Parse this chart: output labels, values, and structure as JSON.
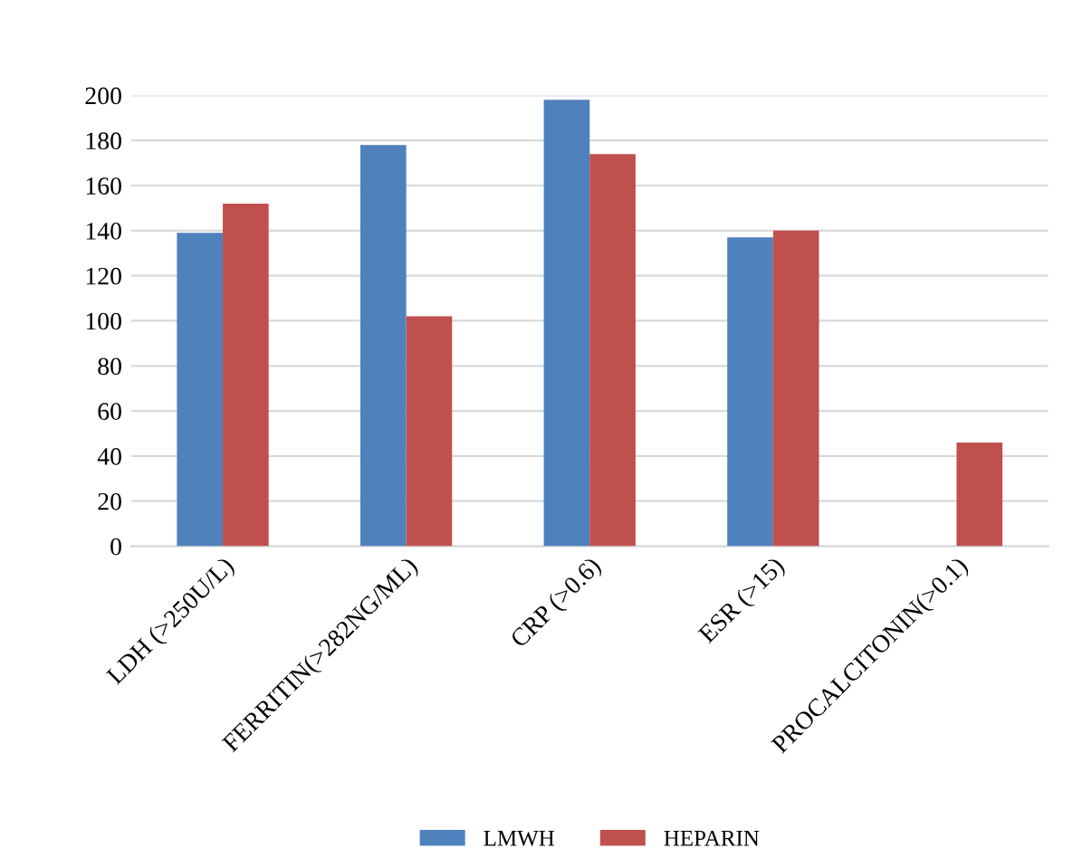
{
  "chart_data": {
    "type": "bar",
    "categories": [
      "LDH (>250U/L)",
      "FERRITIN(>282NG/ML)",
      "CRP (>0.6)",
      "ESR (>15)",
      "PROCALCITONIN(>0.1)"
    ],
    "series": [
      {
        "name": "LMWH",
        "color": "#4f81bd",
        "values": [
          139,
          178,
          198,
          137,
          null
        ]
      },
      {
        "name": "HEPARIN",
        "color": "#c0504d",
        "values": [
          152,
          102,
          174,
          140,
          46
        ]
      }
    ],
    "ylim": [
      0,
      200
    ],
    "yticks": [
      0,
      20,
      40,
      60,
      80,
      100,
      120,
      140,
      160,
      180,
      200
    ],
    "grid": "y",
    "legend": "bottom"
  }
}
